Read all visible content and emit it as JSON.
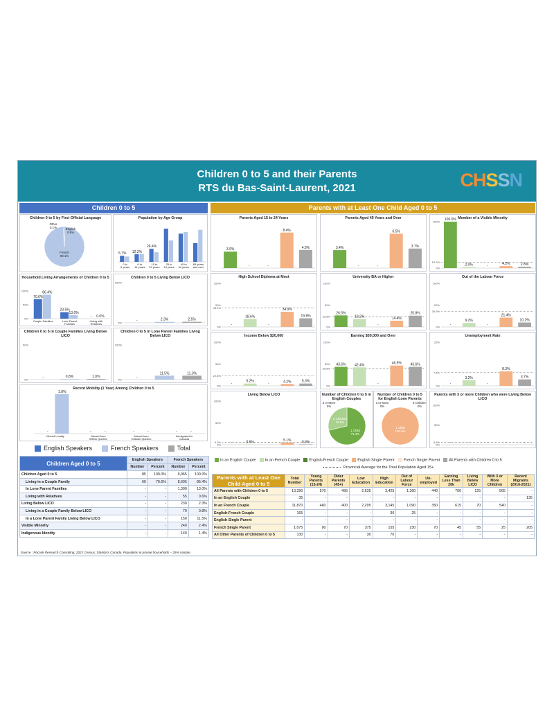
{
  "header": {
    "title_line1": "Children 0 to 5 and their Parents",
    "title_line2": "RTS du Bas-Saint-Laurent, 2021",
    "logo_text": "CHSSN"
  },
  "colors": {
    "banner": "#1a8aa0",
    "left_header": "#4472c4",
    "right_header": "#d4a020",
    "english": "#4472c4",
    "french": "#b4c7e7",
    "total": "#a6a6a6",
    "eng_couple": "#70ad47",
    "fr_couple": "#c5e0b4",
    "engfr_couple": "#548235",
    "eng_single": "#f4b183",
    "fr_single": "#fbe5d6",
    "all_parents": "#a6a6a6"
  },
  "left": {
    "section_title": "Children 0 to 5",
    "legend": [
      "English Speakers",
      "French Speakers",
      "Total"
    ],
    "table_title": "Children Aged 0 to 5",
    "table_groups": [
      "English Speakers",
      "French Speakers"
    ],
    "table_cols": [
      "Number",
      "Percent",
      "Number",
      "Percent"
    ],
    "table_rows": [
      {
        "label": "Children Aged 0 to 5",
        "cells": [
          "85",
          "100.0%",
          "9,965",
          "100.0%"
        ]
      },
      {
        "label": "Living in a Couple Family",
        "cells": [
          "60",
          "70.6%",
          "8,605",
          "86.4%"
        ]
      },
      {
        "label": "In Lone Parent Families",
        "cells": [
          "-",
          "-",
          "1,300",
          "13.0%"
        ]
      },
      {
        "label": "Living with Relatives",
        "cells": [
          "-",
          "-",
          "55",
          "0.6%"
        ]
      },
      {
        "label": "Living Below LICO",
        "cells": [
          "-",
          "-",
          "230",
          "2.3%"
        ]
      },
      {
        "label": "Living in a Couple Family Below LICO",
        "cells": [
          "-",
          "-",
          "70",
          "0.8%"
        ]
      },
      {
        "label": "In a Lone Parent Family Living Below LICO",
        "cells": [
          "-",
          "-",
          "150",
          "11.5%"
        ]
      },
      {
        "label": "Visible Minority",
        "cells": [
          "-",
          "-",
          "240",
          "2.4%"
        ]
      },
      {
        "label": "Indigenous Identity",
        "cells": [
          "-",
          "-",
          "140",
          "1.4%"
        ]
      }
    ],
    "source": "Source : Pocock Research Consulting, 2021 Census, Statistics Canada. Population in private households – 25% sample."
  },
  "right": {
    "section_title": "Parents with at Least One Child Aged 0 to 5",
    "legend": [
      "In an English Couple",
      "In an French Couple",
      "English-French Couple",
      "English Single Parent",
      "French Single Parent",
      "All Parents with Children 0 to 5"
    ],
    "avg_note": "Provincial Average for the Total Population Aged 15+",
    "table_title": "Parents with at Least One Child Aged 0 to 5",
    "table_cols": [
      "Total Number",
      "Young Parents (15-24)",
      "Older Parents (45+)",
      "Low Education",
      "High Education",
      "Out of Labour Force",
      "Un-employed",
      "Earning Less Than 20k",
      "Living Below LICO",
      "With 3 or More Children",
      "Recent Migrants (2016-2021)"
    ],
    "table_rows": [
      {
        "label": "All Parents with Children 0 to 5",
        "cells": [
          "13,290",
          "570",
          "495",
          "2,635",
          "3,425",
          "1,360",
          "440",
          "700",
          "125",
          "565",
          "-"
        ]
      },
      {
        "label": "In an English Couple",
        "cells": [
          "35",
          "-",
          "-",
          "-",
          "-",
          "-",
          "-",
          "-",
          "-",
          "-",
          "135"
        ]
      },
      {
        "label": "In an French Couple",
        "cells": [
          "11,870",
          "460",
          "400",
          "2,205",
          "3,145",
          "1,090",
          "350",
          "615",
          "70",
          "540",
          "-"
        ]
      },
      {
        "label": "English-French Couple",
        "cells": [
          "165",
          "-",
          "-",
          "-",
          "30",
          "25",
          "-",
          "-",
          "-",
          "-",
          "-"
        ]
      },
      {
        "label": "English Single Parent",
        "cells": [
          "-",
          "-",
          "-",
          "-",
          "-",
          "-",
          "-",
          "-",
          "-",
          "-",
          "-"
        ]
      },
      {
        "label": "French Single Parent",
        "cells": [
          "1,075",
          "90",
          "70",
          "375",
          "155",
          "230",
          "70",
          "45",
          "55",
          "25",
          "205"
        ]
      },
      {
        "label": "All Other Parents of Children 0 to 5",
        "cells": [
          "130",
          "-",
          "-",
          "30",
          "70",
          "-",
          "-",
          "-",
          "-",
          "-",
          "-"
        ]
      }
    ]
  },
  "chart_data": [
    {
      "id": "lang",
      "type": "pie",
      "title": "Children 0 to 5 by First Official Language",
      "labels": [
        "French",
        "English",
        "Other"
      ],
      "values": [
        99.1,
        0.8,
        0.1
      ],
      "value_labels": [
        "99.1%",
        "0.8%",
        "0.1%"
      ]
    },
    {
      "id": "age",
      "type": "bar",
      "title": "Population by Age Group",
      "categories": [
        "0 to 5 years",
        "6 to 14 years",
        "15 to 24 years",
        "25 to 44 years",
        "45 to 64 years",
        "65 years and over"
      ],
      "series": [
        {
          "name": "English Speakers",
          "values": [
            5.7,
            7.1,
            12.2,
            31.1,
            26.4,
            17.5
          ]
        },
        {
          "name": "French Speakers",
          "values": [
            5.0,
            7.5,
            9.0,
            20.0,
            28.0,
            30.0
          ]
        }
      ],
      "value_labels": [
        "5.7%",
        "7.1%",
        "12.2%",
        "31.1%",
        "26.4%",
        "17.5%"
      ],
      "ylim": [
        0,
        35
      ]
    },
    {
      "id": "household",
      "type": "bar",
      "title": "Household Living Arrangements of Children 0 to 5",
      "categories": [
        "Couple Families",
        "Lone Parent Families",
        "Living with Relatives"
      ],
      "series": [
        {
          "name": "English Speakers",
          "values": [
            70.6,
            23.5,
            0
          ]
        },
        {
          "name": "French Speakers",
          "values": [
            86.4,
            13.0,
            0.0
          ]
        }
      ],
      "value_labels": [
        "70.6%",
        "86.4%",
        "23.5%",
        "13.0%",
        "-",
        "0.0%"
      ],
      "ylim": [
        0,
        100
      ]
    },
    {
      "id": "below_lico",
      "type": "bar",
      "title": "Children 0 to 5 Living Below LICO",
      "categories": [
        "English",
        "French",
        "Total"
      ],
      "values": [
        0,
        2.3,
        2.5
      ],
      "value_labels": [
        "-",
        "2.3%",
        "2.5%"
      ],
      "ylim": [
        0,
        100
      ]
    },
    {
      "id": "couple_lico",
      "type": "bar",
      "title": "Children 0 to 5 in Couple Families Living Below LICO",
      "categories": [
        "English",
        "French",
        "Total"
      ],
      "values": [
        0,
        0.8,
        1.0
      ],
      "value_labels": [
        "-",
        "0.8%",
        "1.0%"
      ],
      "ylim": [
        0,
        50
      ]
    },
    {
      "id": "lone_lico",
      "type": "bar",
      "title": "Children 0 to 5 in Lone Parent Families Living Below LICO",
      "categories": [
        "English",
        "French",
        "Total"
      ],
      "values": [
        0,
        11.5,
        11.3
      ],
      "value_labels": [
        "-",
        "11.5%",
        "11.3%"
      ],
      "ylim": [
        0,
        100
      ]
    },
    {
      "id": "mobility",
      "type": "bar",
      "title": "Recent Mobility (1 Year) Among Children 0 to 5",
      "categories": [
        "Moved Locally",
        "Moved from Within Quebec",
        "Moved from Outside Quebec",
        "Immigrated to Canada"
      ],
      "series": [
        {
          "name": "English Speakers",
          "values": [
            0,
            0,
            0,
            0
          ]
        },
        {
          "name": "French Speakers",
          "values": [
            3.8,
            0,
            0,
            0
          ]
        }
      ],
      "value_labels": [
        "-",
        "3.8%",
        "-",
        "-",
        "-",
        "-",
        "-",
        "-"
      ],
      "ylim": [
        0,
        4
      ]
    },
    {
      "id": "p_young",
      "type": "bar",
      "title": "Parents Aged 15 to 24 Years",
      "values": [
        3.9,
        0,
        0,
        8.4,
        4.3
      ],
      "ylim": [
        0,
        10
      ],
      "value_labels": [
        "3.9%",
        "-",
        "-",
        "8.4%",
        "4.3%"
      ]
    },
    {
      "id": "p_older",
      "type": "bar",
      "title": "Parents Aged 45 Years and Over",
      "values": [
        3.4,
        0,
        0,
        6.5,
        3.7
      ],
      "ylim": [
        0,
        8
      ],
      "value_labels": [
        "3.4%",
        "-",
        "-",
        "6.5%",
        "3.7%"
      ]
    },
    {
      "id": "p_vismin",
      "type": "bar",
      "title": "Member of a Visible Minority",
      "values": [
        100.0,
        2.0,
        0,
        4.2,
        2.8
      ],
      "avg": 13.0,
      "ylim": [
        0,
        100
      ],
      "value_labels": [
        "100.0%",
        "2.0%",
        "-",
        "4.2%",
        "2.8%"
      ]
    },
    {
      "id": "p_hsd",
      "type": "bar",
      "title": "High School Diploma at Most",
      "values": [
        0,
        18.6,
        0,
        34.9,
        19.8
      ],
      "avg": 43.4,
      "ylim": [
        0,
        100
      ],
      "value_labels": [
        "-",
        "18.6%",
        "-",
        "34.9%",
        "19.8%"
      ]
    },
    {
      "id": "p_univ",
      "type": "bar",
      "title": "University BA or Higher",
      "values": [
        26.5,
        18.2,
        0,
        14.4,
        25.8
      ],
      "avg": 23.5,
      "ylim": [
        0,
        100
      ],
      "value_labels": [
        "26.5%",
        "18.2%",
        "-",
        "14.4%",
        "25.8%"
      ]
    },
    {
      "id": "p_olf",
      "type": "bar",
      "title": "Out of the Labour Force",
      "values": [
        0,
        9.2,
        0,
        21.4,
        10.2
      ],
      "avg": 35.9,
      "ylim": [
        0,
        100
      ],
      "value_labels": [
        "-",
        "9.2%",
        "-",
        "21.4%",
        "10.2%"
      ]
    },
    {
      "id": "p_inc20",
      "type": "bar",
      "title": "Income Below $20,000",
      "values": [
        0,
        5.2,
        0,
        4.2,
        5.3
      ],
      "avg": 22.8,
      "ylim": [
        0,
        100
      ],
      "value_labels": [
        "-",
        "5.2%",
        "-",
        "4.2%",
        "5.3%"
      ]
    },
    {
      "id": "p_earn50",
      "type": "bar",
      "title": "Earning $50,000 and Over",
      "values": [
        43.6,
        42.4,
        0,
        46.5,
        43.6
      ],
      "avg": 39.8,
      "ylim": [
        0,
        100
      ],
      "value_labels": [
        "43.6%",
        "42.4%",
        "-",
        "46.5%",
        "43.6%"
      ]
    },
    {
      "id": "p_unemp",
      "type": "bar",
      "title": "Unemployment Rate",
      "values": [
        0,
        3.2,
        0,
        8.3,
        3.7
      ],
      "avg": 7.6,
      "ylim": [
        0,
        25
      ],
      "value_labels": [
        "-",
        "3.2%",
        "-",
        "8.3%",
        "3.7%"
      ]
    },
    {
      "id": "p_lico",
      "type": "bar",
      "title": "Living Below LICO",
      "values": [
        0,
        0.6,
        0,
        5.1,
        0.9
      ],
      "avg": 5.3,
      "ylim": [
        0,
        100
      ],
      "value_labels": [
        "-",
        "0.6%",
        "-",
        "5.1%",
        "0.9%"
      ]
    },
    {
      "id": "p_pie_eng",
      "type": "pie",
      "title": "Number of Children 0 to 5 in English Couples",
      "labels": [
        "1 Child",
        "2 Children",
        "3 or More"
      ],
      "values": [
        71.4,
        28.6,
        0
      ],
      "value_labels": [
        "71.4%",
        "28.6%",
        "0%"
      ]
    },
    {
      "id": "p_pie_single",
      "type": "pie",
      "title": "Number of Children 0 to 5 for English Lone Parents",
      "labels": [
        "1 Child",
        "2 Children",
        "3 or More"
      ],
      "values": [
        100.0,
        0,
        0
      ],
      "value_labels": [
        "100.0%",
        "0%",
        "0%"
      ]
    },
    {
      "id": "p_three",
      "type": "bar",
      "title": "Parents with 3 or more Children who were Living Below LICO",
      "values": [
        0,
        0,
        0,
        0,
        0
      ],
      "avg": 5.8,
      "ylim": [
        0,
        100
      ],
      "value_labels": [
        "-",
        "-",
        "-",
        "-",
        "-"
      ]
    }
  ]
}
